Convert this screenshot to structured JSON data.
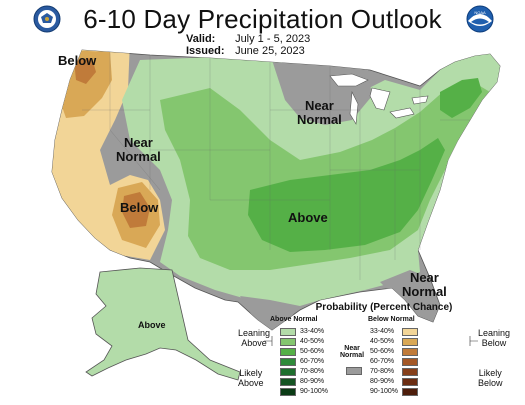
{
  "header": {
    "title": "6-10 Day Precipitation Outlook",
    "valid_label": "Valid:",
    "valid_value": "July 1 - 5, 2023",
    "issued_label": "Issued:",
    "issued_value": "June 25, 2023",
    "left_logo_icon": "doc-seal-logo",
    "right_logo_icon": "noaa-logo",
    "right_logo_text": "NOAA"
  },
  "map": {
    "labels": {
      "below_nw": "Below",
      "near_normal_west": "Near\nNormal",
      "below_sw": "Below",
      "near_normal_north": "Near\nNormal",
      "above_central": "Above",
      "near_normal_florida": "Near\nNormal",
      "above_alaska": "Above"
    },
    "colors": {
      "above_33_40": "#b3dca9",
      "above_40_50": "#84c66f",
      "above_50_60": "#55b047",
      "above_60_70": "#2f8a3a",
      "above_70_80": "#1e6e2e",
      "above_80_90": "#155423",
      "above_90_100": "#0a3b15",
      "near_normal": "#9b9b9b",
      "below_33_40": "#f2d597",
      "below_40_50": "#d9a856",
      "below_50_60": "#c07b3a",
      "below_60_70": "#a45827",
      "below_70_80": "#86401b",
      "below_80_90": "#6a2c12",
      "below_90_100": "#4d1d0b",
      "water": "#ffffff",
      "border": "#555555"
    }
  },
  "legend": {
    "title": "Probability (Percent Chance)",
    "above_header": "Above Normal",
    "below_header": "Below Normal",
    "near_header": "Near\nNormal",
    "leaning_above": "Leaning\nAbove",
    "likely_above": "Likely\nAbove",
    "leaning_below": "Leaning\nBelow",
    "likely_below": "Likely\nBelow",
    "above_ranges": [
      "33-40%",
      "40-50%",
      "50-60%",
      "60-70%",
      "70-80%",
      "80-90%",
      "90-100%"
    ],
    "below_ranges": [
      "33-40%",
      "40-50%",
      "50-60%",
      "60-70%",
      "70-80%",
      "80-90%",
      "90-100%"
    ],
    "above_colors": [
      "#b3dca9",
      "#84c66f",
      "#55b047",
      "#2f8a3a",
      "#1e6e2e",
      "#155423",
      "#0a3b15"
    ],
    "below_colors": [
      "#f2d597",
      "#d9a856",
      "#c07b3a",
      "#a45827",
      "#86401b",
      "#6a2c12",
      "#4d1d0b"
    ],
    "near_color": "#9b9b9b"
  }
}
